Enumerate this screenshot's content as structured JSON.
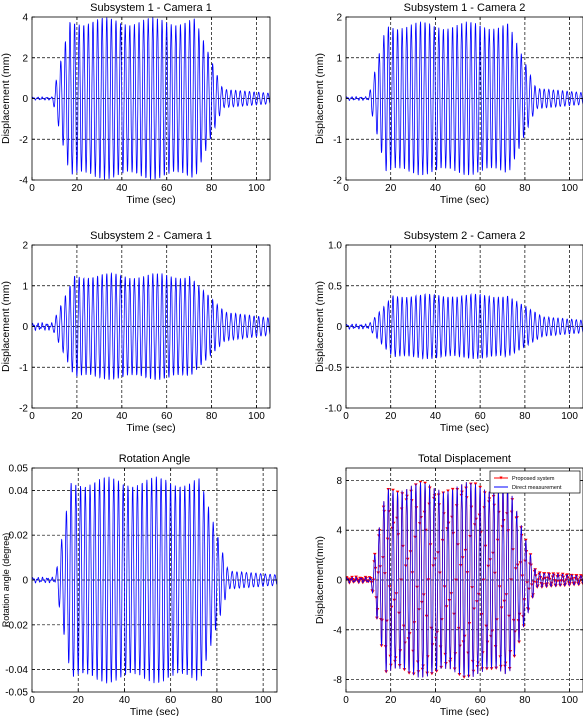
{
  "chart_data": [
    {
      "type": "line",
      "title": "Subsystem 1 - Camera 1",
      "xlabel": "Time (sec)",
      "ylabel": "Displacement (mm)",
      "xlim": [
        0,
        106
      ],
      "ylim": [
        -4,
        4
      ],
      "xticks": [
        "0",
        "20",
        "40",
        "60",
        "80",
        "100"
      ],
      "yticks": [
        "4",
        "2",
        "0",
        "-2",
        "-4"
      ],
      "grid": true,
      "line_color": "#0000ff",
      "envelope": {
        "onset": 9,
        "ramp_end": 17,
        "decay_start": 73,
        "decay_end": 85,
        "peak": 3.8,
        "tail": 0.45,
        "noise": 0.05,
        "period": 2.05
      },
      "series": [
        {
          "values_note": "",
          "x": [
            0,
            9,
            17,
            73,
            85,
            106
          ],
          "y_amplitude": [
            0.05,
            0.05,
            3.8,
            3.8,
            0.45,
            0.1
          ]
        }
      ]
    },
    {
      "type": "line",
      "title": "Subsystem 1 - Camera 2",
      "xlabel": "Time (sec)",
      "ylabel": "Displacement (mm)",
      "xlim": [
        0,
        106
      ],
      "ylim": [
        -2,
        2
      ],
      "xticks": [
        "0",
        "20",
        "40",
        "60",
        "80",
        "100"
      ],
      "yticks": [
        "2",
        "1",
        "0",
        "-1",
        "-2"
      ],
      "grid": true,
      "line_color": "#0000ff",
      "envelope": {
        "onset": 10,
        "ramp_end": 18,
        "decay_start": 73,
        "decay_end": 85,
        "peak": 1.8,
        "tail": 0.25,
        "noise": 0.03,
        "period": 2.05
      },
      "series": [
        {
          "x": [
            0,
            10,
            18,
            73,
            85,
            106
          ],
          "y_amplitude": [
            0.03,
            0.03,
            1.8,
            1.8,
            0.25,
            0.08
          ]
        }
      ]
    },
    {
      "type": "line",
      "title": "Subsystem 2 - Camera 1",
      "xlabel": "Time (sec)",
      "ylabel": "Displacement (mm)",
      "xlim": [
        0,
        106
      ],
      "ylim": [
        -2,
        2
      ],
      "xticks": [
        "0",
        "20",
        "40",
        "60",
        "80",
        "100"
      ],
      "yticks": [
        "2",
        "1",
        "0",
        "-1",
        "-2"
      ],
      "grid": true,
      "line_color": "#0000ff",
      "envelope": {
        "onset": 9,
        "ramp_end": 19,
        "decay_start": 70,
        "decay_end": 86,
        "peak": 1.25,
        "tail": 0.35,
        "noise": 0.06,
        "period": 2.05
      },
      "series": [
        {
          "x": [
            0,
            9,
            19,
            70,
            86,
            106
          ],
          "y_amplitude": [
            0.06,
            0.06,
            1.25,
            1.05,
            0.35,
            0.3
          ]
        }
      ]
    },
    {
      "type": "line",
      "title": "Subsystem 2 - Camera 2",
      "xlabel": "Time (sec)",
      "ylabel": "Displacement (mm)",
      "xlim": [
        0,
        106
      ],
      "ylim": [
        -1.0,
        1.0
      ],
      "xticks": [
        "0",
        "20",
        "40",
        "60",
        "80",
        "100"
      ],
      "yticks": [
        "1.0",
        "0.5",
        "0",
        "-0.5",
        "-1.0"
      ],
      "grid": true,
      "line_color": "#0000ff",
      "envelope": {
        "onset": 10,
        "ramp_end": 21,
        "decay_start": 72,
        "decay_end": 88,
        "peak": 0.38,
        "tail": 0.12,
        "noise": 0.02,
        "period": 2.05
      },
      "series": [
        {
          "x": [
            0,
            10,
            21,
            72,
            88,
            106
          ],
          "y_amplitude": [
            0.02,
            0.02,
            0.38,
            0.3,
            0.12,
            0.1
          ]
        }
      ]
    },
    {
      "type": "line",
      "title": "Rotation Angle",
      "xlabel": "Time (sec)",
      "ylabel": "Rotation angle (degree)",
      "xlim": [
        0,
        106
      ],
      "ylim": [
        -0.05,
        0.05
      ],
      "xticks": [
        "0",
        "20",
        "40",
        "60",
        "80",
        "100"
      ],
      "yticks": [
        "0.05",
        "0.04",
        "0.02",
        "0",
        "-0.02",
        "-0.04",
        "-0.05"
      ],
      "ytick_values": [
        0.05,
        0.04,
        0.02,
        0,
        -0.02,
        -0.04,
        -0.05
      ],
      "grid_y": [
        0.04,
        0.02,
        0,
        -0.02,
        -0.04
      ],
      "grid": true,
      "line_color": "#0000ff",
      "envelope": {
        "onset": 10,
        "ramp_end": 17,
        "decay_start": 73,
        "decay_end": 85,
        "peak": 0.044,
        "tail": 0.004,
        "noise": 0.0008,
        "period": 2.05
      },
      "series": [
        {
          "x": [
            0,
            10,
            17,
            73,
            85,
            106
          ],
          "y_amplitude": [
            0.0008,
            0.0008,
            0.044,
            0.044,
            0.004,
            0.002
          ]
        }
      ]
    },
    {
      "type": "line",
      "title": "Total Displacement",
      "xlabel": "Time (sec)",
      "ylabel": "Displacement(mm)",
      "xlim": [
        0,
        106
      ],
      "ylim": [
        -9,
        9
      ],
      "xticks": [
        "0",
        "20",
        "40",
        "60",
        "80",
        "100"
      ],
      "yticks": [
        "8",
        "4",
        "0",
        "-4",
        "-8"
      ],
      "ytick_values": [
        8,
        4,
        0,
        -4,
        -8
      ],
      "grid_y": [
        8,
        4,
        0,
        -4,
        -8
      ],
      "grid": true,
      "legend_position": "top-right",
      "envelope": {
        "onset": 11,
        "ramp_end": 18,
        "decay_start": 73,
        "decay_end": 85,
        "peak": 7.5,
        "tail": 0.6,
        "noise": 0.15,
        "period": 2.05
      },
      "series": [
        {
          "name": "Proposed system",
          "color": "#ff0000",
          "marker": "triangle-down",
          "x": [
            0,
            11,
            18,
            73,
            85,
            106
          ],
          "y_amplitude": [
            0.15,
            0.15,
            7.5,
            7.5,
            0.6,
            0.2
          ]
        },
        {
          "name": "Direct measurement",
          "color": "#0000ff",
          "x": [
            0,
            11,
            18,
            73,
            85,
            106
          ],
          "y_amplitude": [
            0.15,
            0.15,
            7.5,
            7.5,
            0.6,
            0.2
          ]
        }
      ]
    }
  ]
}
